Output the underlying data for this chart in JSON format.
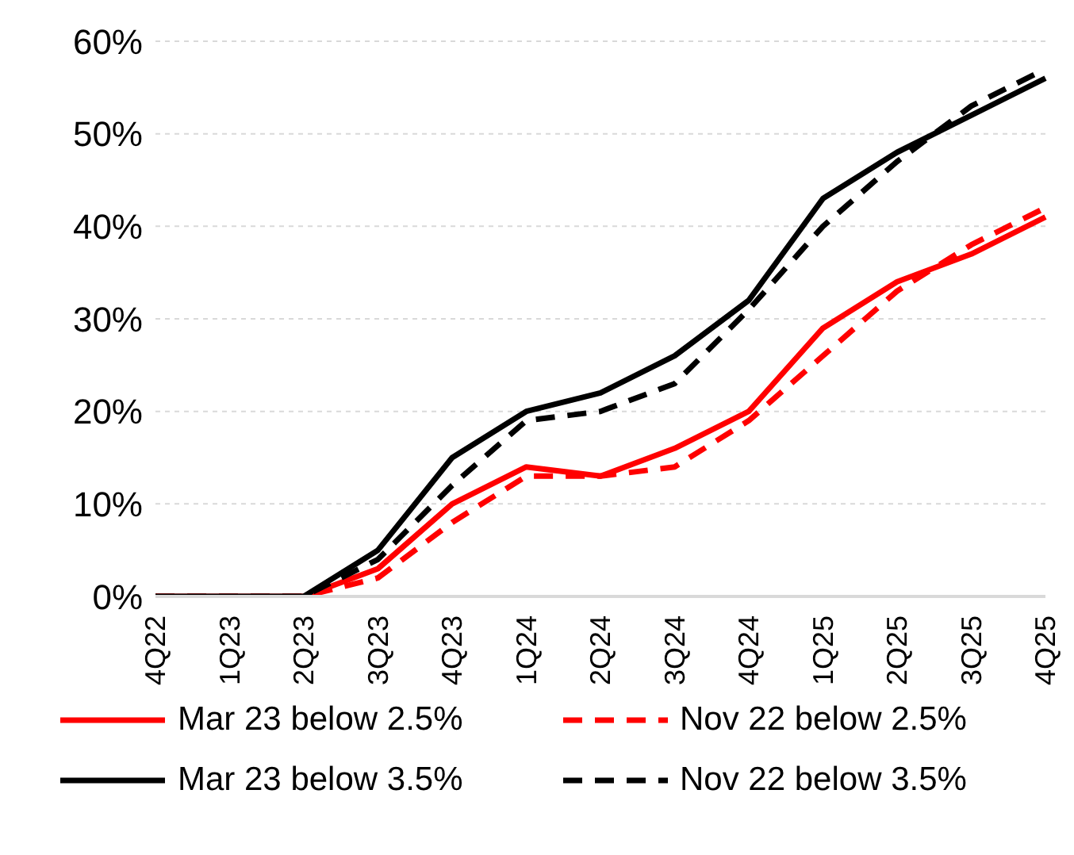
{
  "chart_data": {
    "type": "line",
    "categories": [
      "4Q22",
      "1Q23",
      "2Q23",
      "3Q23",
      "4Q23",
      "1Q24",
      "2Q24",
      "3Q24",
      "4Q24",
      "1Q25",
      "2Q25",
      "3Q25",
      "4Q25"
    ],
    "series": [
      {
        "name": "Mar 23 below 2.5%",
        "color": "#ff0000",
        "line_style": "solid",
        "values": [
          0,
          0,
          0,
          3,
          10,
          14,
          13,
          16,
          20,
          29,
          34,
          37,
          41
        ]
      },
      {
        "name": "Mar 23 below 3.5%",
        "color": "#000000",
        "line_style": "solid",
        "values": [
          0,
          0,
          0,
          5,
          15,
          20,
          22,
          26,
          32,
          43,
          48,
          52,
          56
        ]
      },
      {
        "name": "Nov 22 below 2.5%",
        "color": "#ff0000",
        "line_style": "dashed",
        "values": [
          0,
          0,
          0,
          2,
          8,
          13,
          13,
          14,
          19,
          26,
          33,
          38,
          42
        ]
      },
      {
        "name": "Nov 22 below 3.5%",
        "color": "#000000",
        "line_style": "dashed",
        "values": [
          0,
          0,
          0,
          4,
          12,
          19,
          20,
          23,
          31,
          40,
          47,
          53,
          57
        ]
      }
    ],
    "ylim": [
      0,
      60
    ],
    "yticks": [
      {
        "value": 0,
        "label": "0%"
      },
      {
        "value": 10,
        "label": "10%"
      },
      {
        "value": 20,
        "label": "20%"
      },
      {
        "value": 30,
        "label": "30%"
      },
      {
        "value": 40,
        "label": "40%"
      },
      {
        "value": 50,
        "label": "50%"
      },
      {
        "value": 60,
        "label": "60%"
      }
    ],
    "grid": "y",
    "legend": "bottom",
    "marker": "none"
  }
}
